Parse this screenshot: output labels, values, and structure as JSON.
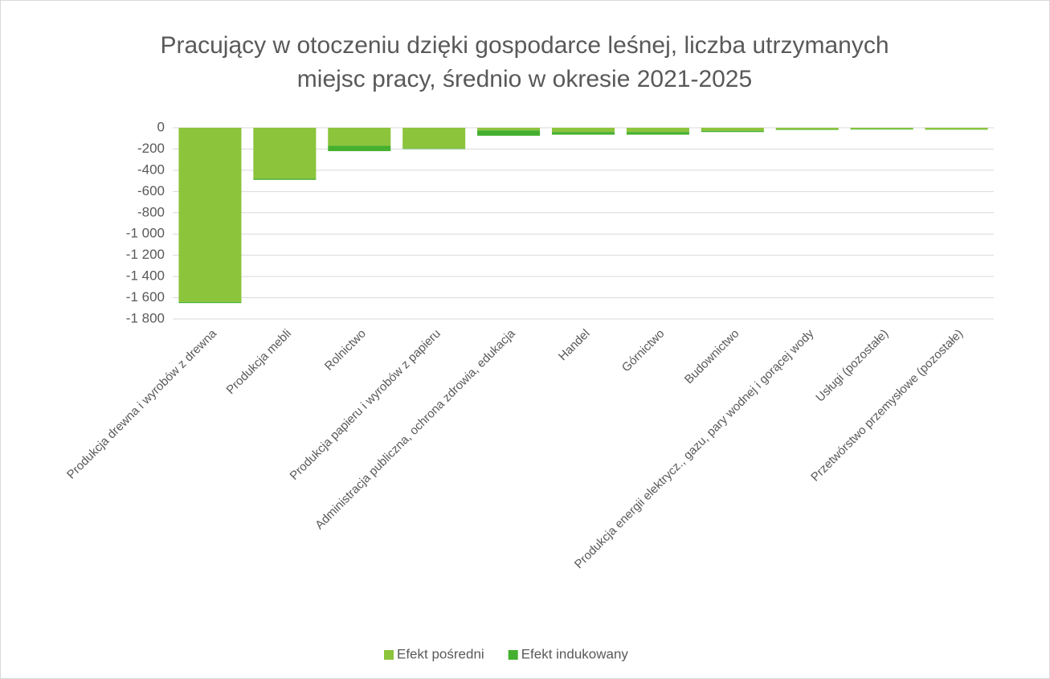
{
  "chart_data": {
    "type": "stacked_bar",
    "title": [
      "Pracujący w otoczeniu dzięki gospodarce leśnej, liczba utrzymanych",
      "miejsc pracy, średnio w okresie 2021-2025"
    ],
    "categories": [
      "Produkcja drewna i wyrobów z drewna",
      "Produkcja mebli",
      "Rolnictwo",
      "Produkcja papieru i wyrobów z papieru",
      "Administracja publiczna, ochrona zdrowia, edukacja",
      "Handel",
      "Górnictwo",
      "Budownictwo",
      "Produkcja energii elektrycz., gazu, pary wodnej i gorącej wody",
      "Usługi (pozostałe)",
      "Przetwórstwo przemysłowe (pozostałe)"
    ],
    "series": [
      {
        "name": "Efekt pośredni",
        "color": "#8cc43c",
        "values": [
          -1640,
          -480,
          -170,
          -195,
          -25,
          -40,
          -40,
          -30,
          -15,
          -12,
          -15
        ]
      },
      {
        "name": "Efekt indukowany",
        "color": "#45b02f",
        "values": [
          -10,
          -10,
          -50,
          -5,
          -50,
          -25,
          -25,
          -10,
          -5,
          -5,
          -3
        ]
      }
    ],
    "ylim": [
      -1800,
      0
    ],
    "yticks": [
      0,
      -200,
      -400,
      -600,
      -800,
      {
        "value": -1000,
        "label": "-1 000"
      },
      {
        "value": -1200,
        "label": "-1 200"
      },
      {
        "value": -1400,
        "label": "-1 400"
      },
      {
        "value": -1600,
        "label": "-1 600"
      },
      {
        "value": -1800,
        "label": "-1 800"
      }
    ],
    "grid": true,
    "legend": "bottom"
  }
}
